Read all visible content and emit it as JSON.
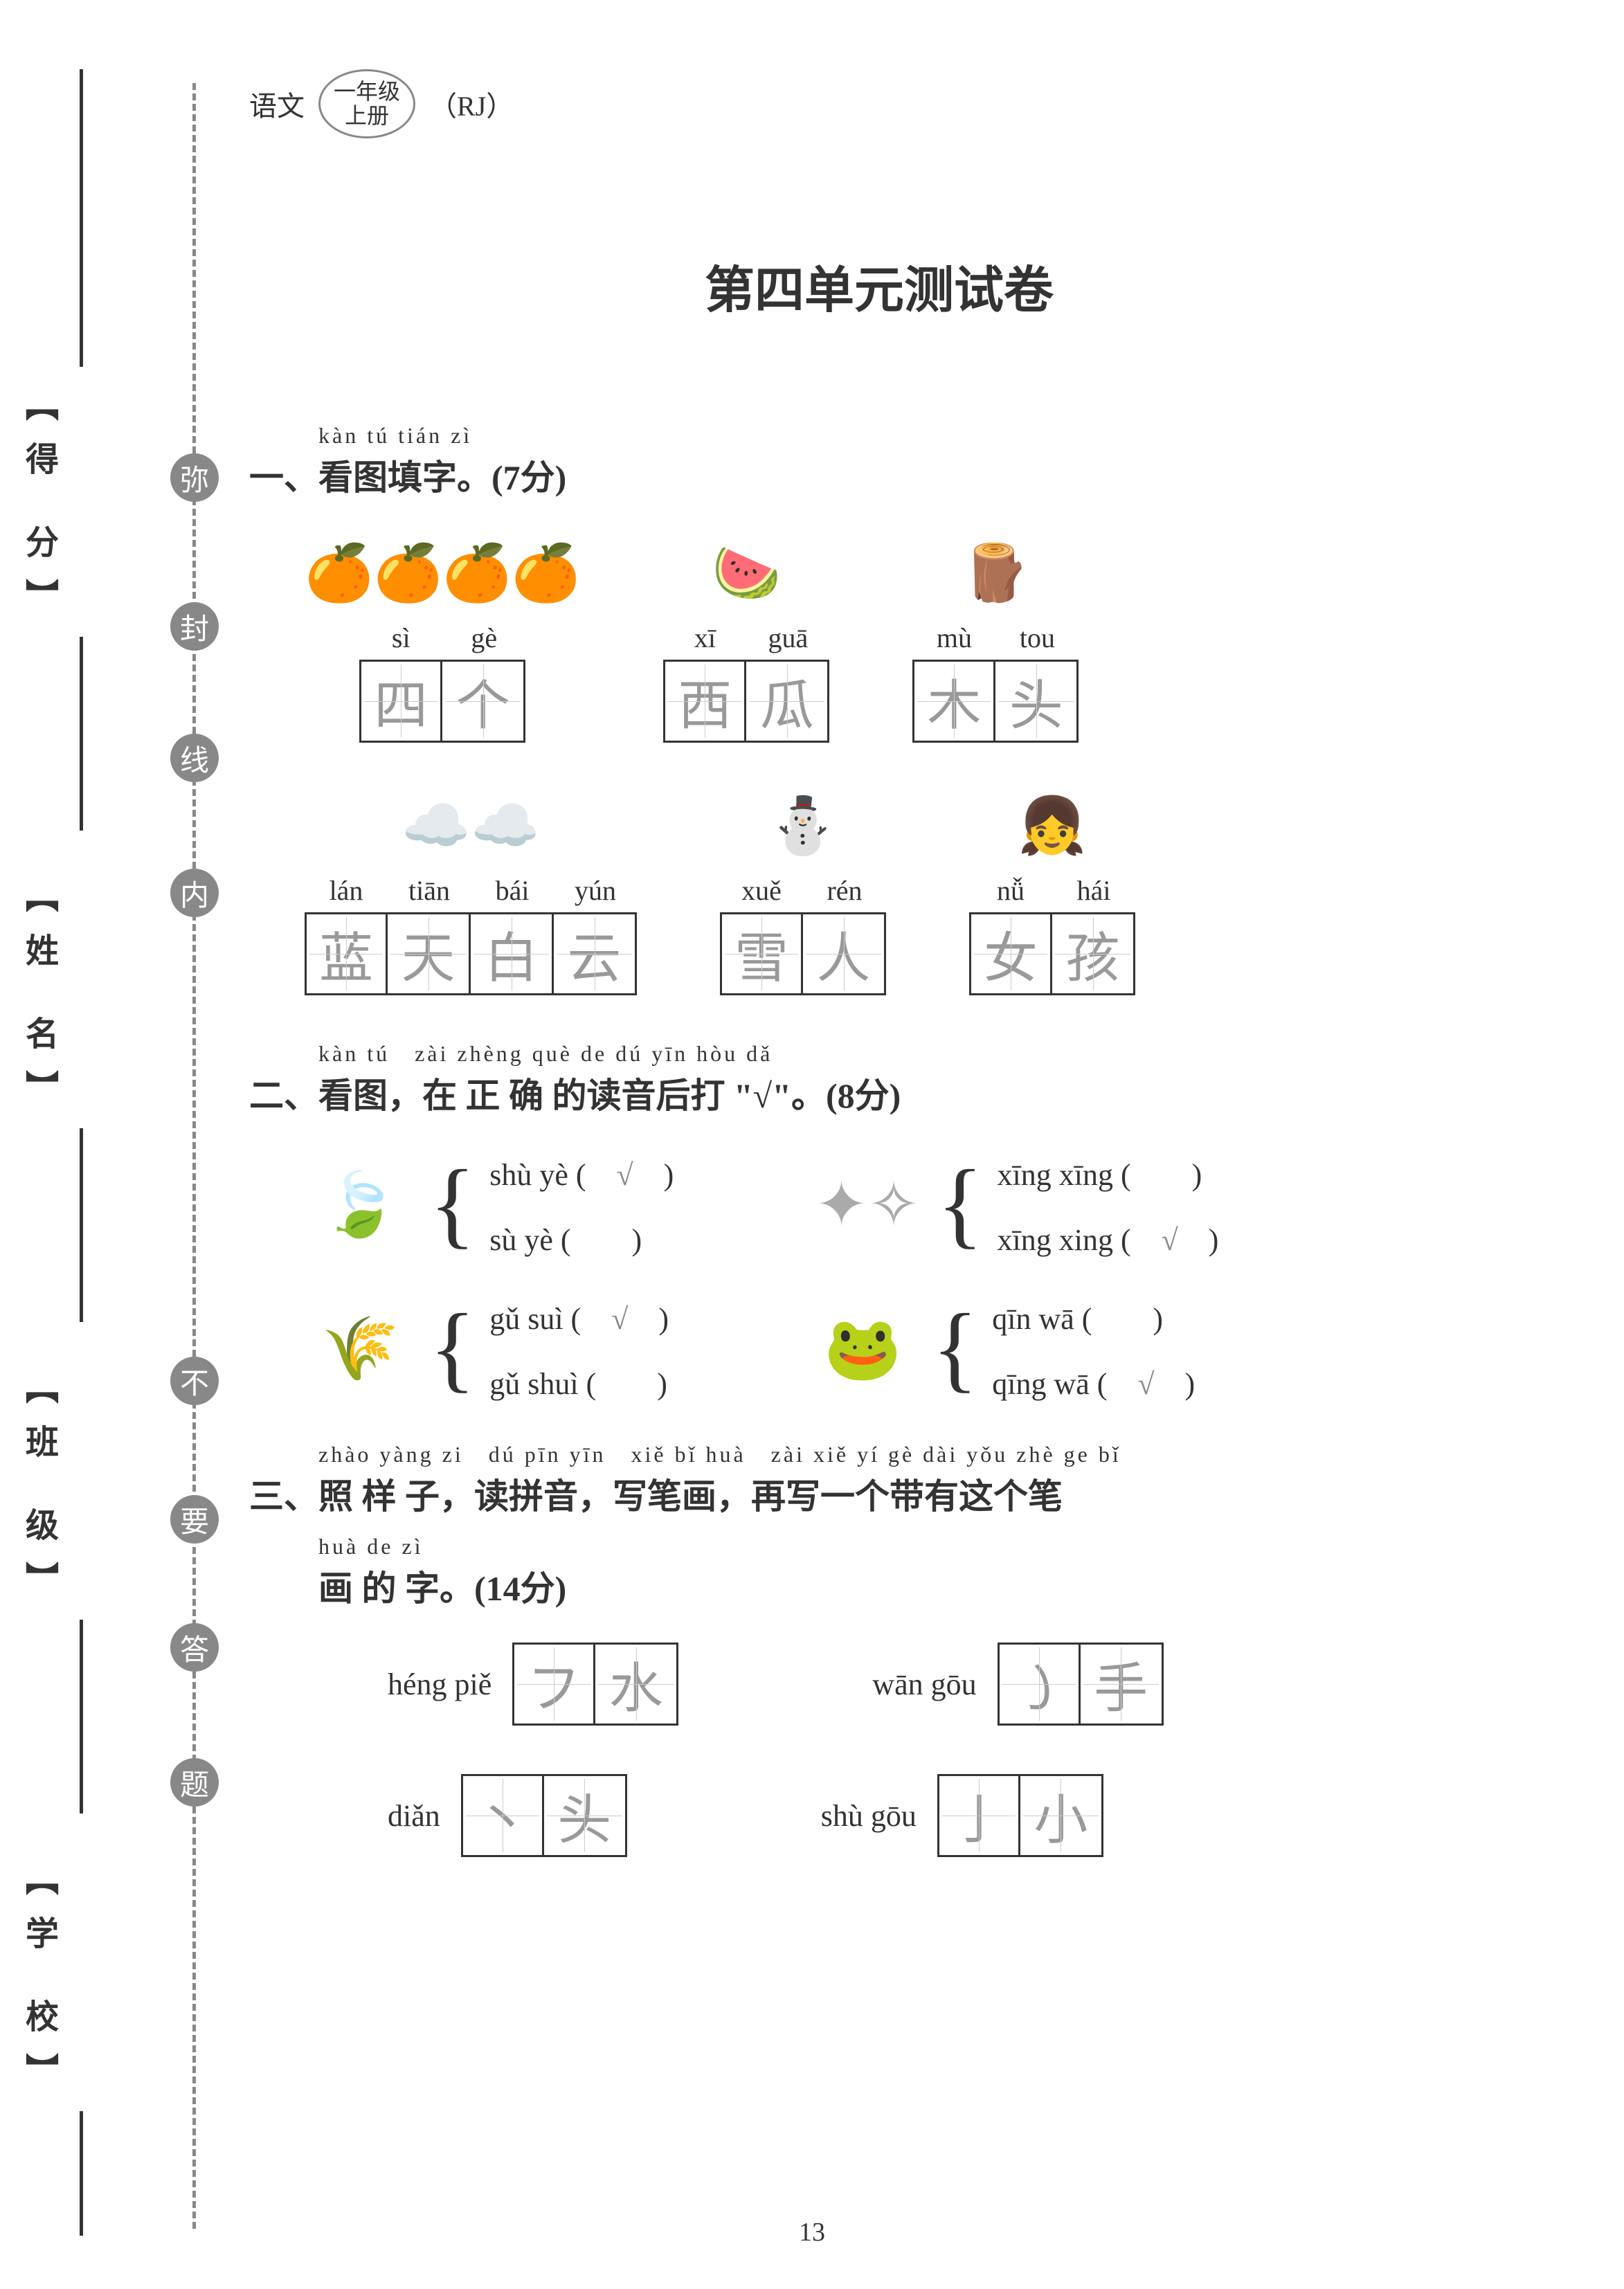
{
  "header": {
    "subject": "语文",
    "grade_line1": "一年级",
    "grade_line2": "上册",
    "edition": "（RJ）"
  },
  "title": "第四单元测试卷",
  "sidebar": {
    "labels": [
      "【得 分】",
      "【姓 名】",
      "【班 级】",
      "【学 校】"
    ],
    "seal_chars": [
      "弥",
      "封",
      "线",
      "内",
      "不",
      "要",
      "答",
      "题"
    ]
  },
  "q1": {
    "pinyin_heading": "kàn tú tián zì",
    "heading": "一、看图填字。(7分)",
    "row1": [
      {
        "icon": "🍊🍊🍊🍊",
        "pinyin": [
          "sì",
          "gè"
        ],
        "chars": [
          "四",
          "个"
        ]
      },
      {
        "icon": "🍉",
        "pinyin": [
          "xī",
          "guā"
        ],
        "chars": [
          "西",
          "瓜"
        ]
      },
      {
        "icon": "🪵",
        "pinyin": [
          "mù",
          "tou"
        ],
        "chars": [
          "木",
          "头"
        ]
      }
    ],
    "row2": [
      {
        "icon": "☁️☁️",
        "pinyin": [
          "lán",
          "tiān",
          "bái",
          "yún"
        ],
        "chars": [
          "蓝",
          "天",
          "白",
          "云"
        ]
      },
      {
        "icon": "⛄",
        "pinyin": [
          "xuě",
          "rén"
        ],
        "chars": [
          "雪",
          "人"
        ]
      },
      {
        "icon": "👧",
        "pinyin": [
          "nǚ",
          "hái"
        ],
        "chars": [
          "女",
          "孩"
        ]
      }
    ]
  },
  "q2": {
    "pinyin_heading": "kàn tú　zài zhèng què de dú yīn hòu dǎ",
    "heading": "二、看图，在 正 确 的读音后打 \"√\"。(8分)",
    "items": [
      {
        "icon": "🍃",
        "opts": [
          {
            "text": "shù yè",
            "mark": "√"
          },
          {
            "text": "sù yè",
            "mark": ""
          }
        ]
      },
      {
        "icon": "✦✧",
        "opts": [
          {
            "text": "xīng xīng",
            "mark": ""
          },
          {
            "text": "xīng xing",
            "mark": "√"
          }
        ]
      },
      {
        "icon": "🌾",
        "opts": [
          {
            "text": "gǔ suì",
            "mark": "√"
          },
          {
            "text": "gǔ shuì",
            "mark": ""
          }
        ]
      },
      {
        "icon": "🐸",
        "opts": [
          {
            "text": "qīn wā",
            "mark": ""
          },
          {
            "text": "qīng wā",
            "mark": "√"
          }
        ]
      }
    ]
  },
  "q3": {
    "pinyin_heading1": "zhào yàng zi　dú pīn yīn　xiě bǐ huà　zài xiě yí gè dài yǒu zhè ge bǐ",
    "heading1": "三、照 样 子，读拼音，写笔画，再写一个带有这个笔",
    "pinyin_heading2": "huà de zì",
    "heading2": "画 的 字。(14分)",
    "items": [
      {
        "label": "héng piě",
        "chars": [
          "フ",
          "水"
        ]
      },
      {
        "label": "wān gōu",
        "chars": [
          "㇁",
          "手"
        ]
      },
      {
        "label": "diǎn",
        "chars": [
          "丶",
          "头"
        ]
      },
      {
        "label": "shù gōu",
        "chars": [
          "亅",
          "小"
        ]
      }
    ]
  },
  "page_num": "13"
}
